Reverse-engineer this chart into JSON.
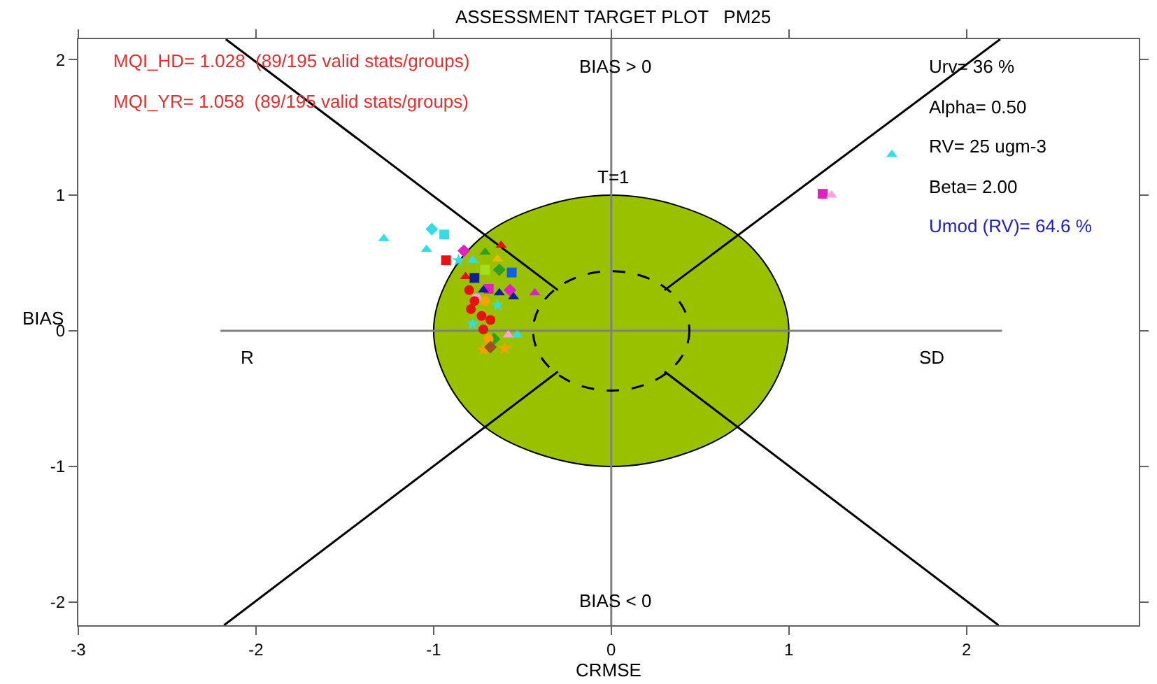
{
  "chart_data": {
    "type": "scatter",
    "title": "ASSESSMENT TARGET PLOT   PM25",
    "xlabel": "CRMSE",
    "ylabel": "BIAS",
    "xlim": [
      -3,
      2.97
    ],
    "ylim": [
      -2.17,
      2.15
    ],
    "xticks": [
      -3,
      -2,
      -1,
      0,
      1,
      2
    ],
    "yticks": [
      -2,
      -1,
      0,
      1,
      2
    ],
    "annotations": [
      "MQI_HD= 1.028  (89/195 valid stats/groups)",
      "MQI_YR= 1.058  (89/195 valid stats/groups)",
      "Urv= 36 %",
      "Alpha= 0.50",
      "RV= 25 ugm-3",
      "Beta= 2.00",
      "Umod (RV)= 64.6 %",
      "R",
      "SD",
      "BIAS > 0",
      "BIAS < 0",
      "T=1"
    ],
    "series": [
      {
        "type": "area",
        "color": "#99c100",
        "x": [
          1,
          0.92,
          0.71,
          0.38,
          0,
          -0.38,
          -0.71,
          -0.92,
          -1,
          -0.92,
          -0.71,
          -0.38,
          0,
          0.38,
          0.71,
          0.92,
          1
        ],
        "values": [
          0,
          0.38,
          0.71,
          0.92,
          1,
          0.92,
          0.71,
          0.38,
          0,
          -0.38,
          -0.71,
          -0.92,
          -1,
          -0.92,
          -0.71,
          -0.38,
          0
        ]
      },
      {
        "type": "line",
        "color": "#808080",
        "line_style": "solid",
        "x": [
          -2.2,
          2.2
        ],
        "values": [
          0,
          0
        ]
      },
      {
        "type": "line",
        "color": "#808080",
        "line_style": "solid",
        "x": [
          0,
          0
        ],
        "values": [
          -2.17,
          2.15
        ]
      },
      {
        "type": "line",
        "color": "#000000",
        "line_style": "solid",
        "x": [
          -2.17,
          -0.3
        ],
        "values": [
          2.15,
          0.3
        ]
      },
      {
        "type": "line",
        "color": "#000000",
        "line_style": "solid",
        "x": [
          0.3,
          2.19
        ],
        "values": [
          0.3,
          2.15
        ]
      },
      {
        "type": "line",
        "color": "#000000",
        "line_style": "solid",
        "x": [
          -2.18,
          -0.3
        ],
        "values": [
          -2.17,
          -0.3
        ]
      },
      {
        "type": "line",
        "color": "#000000",
        "line_style": "solid",
        "x": [
          0.3,
          2.18
        ],
        "values": [
          -0.3,
          -2.17
        ]
      },
      {
        "color": "#33dde6",
        "marker": "diamond",
        "x": [
          -1.01
        ],
        "values": [
          0.75
        ]
      },
      {
        "color": "#33dde6",
        "marker": "square",
        "x": [
          -0.94
        ],
        "values": [
          0.71
        ]
      },
      {
        "color": "#33dde6",
        "marker": "triangle",
        "x": [
          -1.04,
          -1.28,
          1.58,
          -0.78,
          -0.53
        ],
        "values": [
          0.6,
          0.68,
          1.3,
          0.52,
          -0.03
        ]
      },
      {
        "color": "#33dde6",
        "marker": "star",
        "x": [
          -0.86,
          -0.64,
          -0.78
        ],
        "values": [
          0.52,
          0.19,
          0.05
        ]
      },
      {
        "color": "#e81010",
        "marker": "square",
        "x": [
          -0.93
        ],
        "values": [
          0.52
        ]
      },
      {
        "color": "#e81010",
        "marker": "triangle",
        "x": [
          -0.62,
          -0.82
        ],
        "values": [
          0.63,
          0.4
        ]
      },
      {
        "color": "#e020c0",
        "marker": "diamond",
        "x": [
          -0.83,
          -0.57
        ],
        "values": [
          0.59,
          0.3
        ]
      },
      {
        "color": "#e020c0",
        "marker": "square",
        "x": [
          -0.69,
          1.19
        ],
        "values": [
          0.31,
          1.01
        ]
      },
      {
        "color": "#e020c0",
        "marker": "triangle",
        "x": [
          -0.43
        ],
        "values": [
          0.28
        ]
      },
      {
        "color": "#30a020",
        "marker": "triangle",
        "x": [
          -0.71
        ],
        "values": [
          0.58
        ]
      },
      {
        "color": "#30a020",
        "marker": "diamond",
        "x": [
          -0.63,
          -0.66
        ],
        "values": [
          0.45,
          -0.06
        ]
      },
      {
        "color": "#e0c000",
        "marker": "triangle",
        "x": [
          -0.64
        ],
        "values": [
          0.53
        ]
      },
      {
        "color": "#a0e020",
        "marker": "square",
        "x": [
          -0.71
        ],
        "values": [
          0.45
        ]
      },
      {
        "color": "#1060e0",
        "marker": "square",
        "x": [
          -0.56
        ],
        "values": [
          0.43
        ]
      },
      {
        "color": "#102090",
        "marker": "square",
        "x": [
          -0.77
        ],
        "values": [
          0.39
        ]
      },
      {
        "color": "#102090",
        "marker": "triangle",
        "x": [
          -0.72,
          -0.63,
          -0.55
        ],
        "values": [
          0.3,
          0.28,
          0.25
        ]
      },
      {
        "color": "#ffa0e0",
        "marker": "circle",
        "x": [
          -0.76
        ],
        "values": [
          0.24
        ]
      },
      {
        "color": "#ffa0e0",
        "marker": "triangle",
        "x": [
          -0.58,
          1.24
        ],
        "values": [
          -0.03,
          1.0
        ]
      },
      {
        "color": "#ffa000",
        "marker": "circle",
        "x": [
          -0.71,
          -0.69
        ],
        "values": [
          0.22,
          -0.06
        ]
      },
      {
        "color": "#ffa000",
        "marker": "star",
        "x": [
          -0.72,
          -0.6
        ],
        "values": [
          -0.14,
          -0.13
        ]
      },
      {
        "color": "#a05020",
        "marker": "diamond",
        "x": [
          -0.68
        ],
        "values": [
          -0.12
        ]
      },
      {
        "color": "#e81010",
        "marker": "circle",
        "x": [
          -0.8,
          -0.77,
          -0.79,
          -0.73,
          -0.68,
          -0.72
        ],
        "values": [
          0.3,
          0.22,
          0.16,
          0.11,
          0.08,
          0.01
        ]
      }
    ]
  }
}
